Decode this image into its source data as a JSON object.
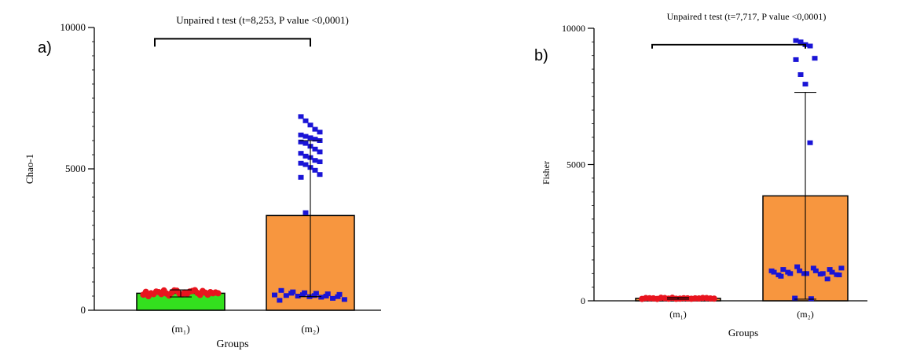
{
  "chart_data": [
    {
      "type": "bar",
      "panel_label": "a)",
      "title": "Unpaired t test  (t=8,253,  P value <0,0001)",
      "xlabel": "Groups",
      "ylabel": "Chao-1",
      "ylim": [
        0,
        10000
      ],
      "yticks": [
        0,
        5000,
        10000
      ],
      "ytick_labels": [
        "0",
        "5000",
        "10000"
      ],
      "minor_ticks": 20,
      "categories": [
        "(m1)",
        "(m2)"
      ],
      "bars": [
        {
          "name": "(m1)",
          "mean": 600,
          "err_low": 470,
          "err_high": 720,
          "fill": "#33e01e"
        },
        {
          "name": "(m2)",
          "mean": 3350,
          "err_low": 480,
          "err_high": 6000,
          "fill": "#f7963f"
        }
      ],
      "points": [
        {
          "group": 0,
          "values": [
            550,
            570,
            590,
            610,
            630,
            660,
            700,
            680,
            640,
            600,
            520,
            580,
            620,
            650,
            700,
            560,
            540,
            600,
            640,
            690,
            710,
            600,
            570,
            620,
            660,
            550,
            500,
            590,
            630,
            680
          ],
          "color": "#e8141e",
          "shape": "circle"
        },
        {
          "group": 1,
          "values": [
            6850,
            6700,
            6550,
            6400,
            6300,
            6200,
            6150,
            6100,
            6050,
            6000,
            5950,
            5900,
            5800,
            5700,
            5600,
            5550,
            5450,
            5400,
            5300,
            5250,
            5200,
            5150,
            5050,
            4950,
            4800,
            4700,
            3450,
            700,
            650,
            620,
            600,
            580,
            560,
            540,
            520,
            500,
            480,
            460,
            420,
            380,
            350,
            600,
            550,
            520,
            500,
            480
          ],
          "color": "#1a14d6",
          "shape": "square"
        }
      ],
      "bracket": {
        "from": 0,
        "to": 1,
        "y": 9600
      }
    },
    {
      "type": "bar",
      "panel_label": "b)",
      "title": "Unpaired t test  (t=7,717,  P value <0,0001)",
      "xlabel": "Groups",
      "ylabel": "Fisher",
      "ylim": [
        0,
        10000
      ],
      "yticks": [
        0,
        5000,
        10000
      ],
      "ytick_labels": [
        "0",
        "5000",
        "10000"
      ],
      "minor_ticks": 20,
      "categories": [
        "(m1)",
        "(m2)"
      ],
      "bars": [
        {
          "name": "(m1)",
          "mean": 90,
          "err_low": 60,
          "err_high": 120,
          "fill": "#f7963f"
        },
        {
          "name": "(m2)",
          "mean": 3850,
          "err_low": 60,
          "err_high": 7650,
          "fill": "#f7963f"
        }
      ],
      "points": [
        {
          "group": 0,
          "values": [
            70,
            80,
            90,
            100,
            110,
            85,
            95,
            75,
            105,
            90,
            80,
            100,
            70,
            95,
            85,
            110,
            90,
            80,
            100,
            75
          ],
          "color": "#e8141e",
          "shape": "circle"
        },
        {
          "group": 1,
          "values": [
            9550,
            9500,
            9400,
            9350,
            8900,
            8850,
            8300,
            7950,
            5800,
            1200,
            1150,
            1100,
            1100,
            1050,
            1050,
            1000,
            1000,
            1000,
            950,
            900,
            1250,
            1200,
            1150,
            1100,
            1050,
            1000,
            980,
            960,
            950,
            100,
            80,
            800
          ],
          "color": "#1a14d6",
          "shape": "square"
        }
      ],
      "bracket": {
        "from": 0,
        "to": 1,
        "y": 9400
      }
    }
  ]
}
